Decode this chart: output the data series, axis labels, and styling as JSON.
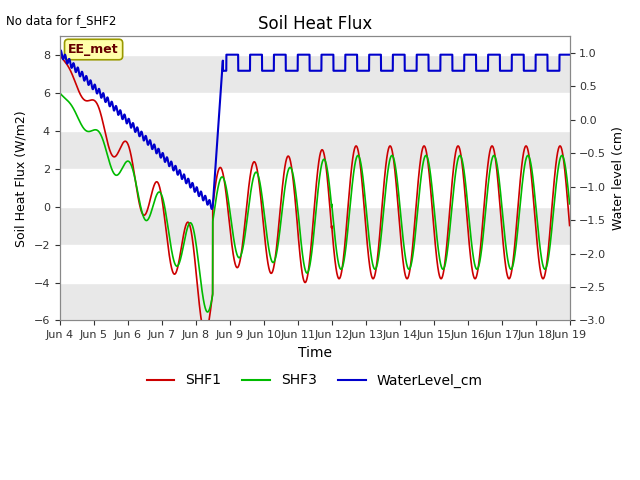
{
  "title": "Soil Heat Flux",
  "ylabel_left": "Soil Heat Flux (W/m2)",
  "ylabel_right": "Water level (cm)",
  "xlabel": "Time",
  "no_data_text": "No data for f_SHF2",
  "annotation_text": "EE_met",
  "ylim_left": [
    -6,
    9
  ],
  "ylim_right": [
    -3.0,
    1.25
  ],
  "yticks_left": [
    -6,
    -4,
    -2,
    0,
    2,
    4,
    6,
    8
  ],
  "yticks_right": [
    -3.0,
    -2.5,
    -2.0,
    -1.5,
    -1.0,
    -0.5,
    0.0,
    0.5,
    1.0
  ],
  "fig_bg_color": "#ffffff",
  "plot_bg_color": "#ffffff",
  "shf1_color": "#cc0000",
  "shf3_color": "#00bb00",
  "water_color": "#0000cc",
  "grid_band_color": "#e8e8e8",
  "xticklabels": [
    "Jun 4",
    "Jun 5",
    "Jun 6",
    "Jun 7",
    "Jun 8",
    "Jun 9",
    "Jun 10",
    "Jun 11",
    "Jun 12",
    "Jun 13",
    "Jun 14",
    "Jun 15",
    "Jun 16",
    "Jun 17",
    "Jun 18",
    "Jun 19"
  ]
}
